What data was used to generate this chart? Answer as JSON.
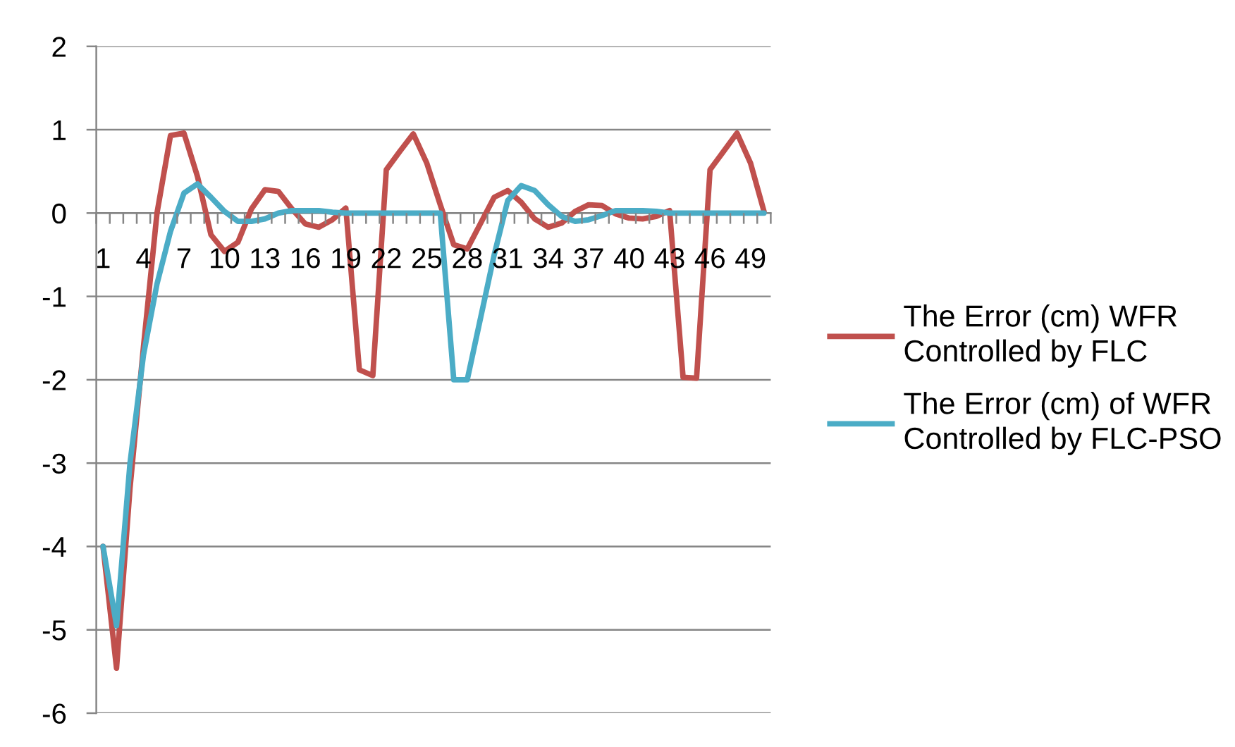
{
  "chart_data": {
    "type": "line",
    "categories": [
      "1",
      null,
      null,
      "4",
      null,
      null,
      "7",
      null,
      null,
      "10",
      null,
      null,
      "13",
      null,
      null,
      "16",
      null,
      null,
      "19",
      null,
      null,
      "22",
      null,
      null,
      "25",
      null,
      null,
      "28",
      null,
      null,
      "31",
      null,
      null,
      "34",
      null,
      null,
      "37",
      null,
      null,
      "40",
      null,
      null,
      "43",
      null,
      null,
      "46",
      null,
      null,
      "49",
      null
    ],
    "series": [
      {
        "name": "The Error (cm) WFR Controlled by FLC",
        "color": "#c0504d",
        "values": [
          -4.0,
          -5.46,
          -3.3,
          -1.6,
          0.0,
          0.93,
          0.96,
          0.44,
          -0.26,
          -0.46,
          -0.35,
          0.05,
          0.28,
          0.26,
          0.05,
          -0.13,
          -0.17,
          -0.08,
          0.06,
          -1.88,
          -1.95,
          0.52,
          0.74,
          0.95,
          0.6,
          0.1,
          -0.38,
          -0.43,
          -0.12,
          0.19,
          0.27,
          0.13,
          -0.07,
          -0.17,
          -0.12,
          0.02,
          0.1,
          0.09,
          -0.01,
          -0.06,
          -0.07,
          -0.04,
          0.03,
          -1.97,
          -1.98,
          0.52,
          0.74,
          0.96,
          0.6,
          0.02
        ]
      },
      {
        "name": "The Error (cm) of WFR Controlled by FLC-PSO",
        "color": "#4bacc6",
        "values": [
          -4.0,
          -4.95,
          -3.0,
          -1.7,
          -0.85,
          -0.22,
          0.24,
          0.35,
          0.19,
          0.02,
          -0.1,
          -0.1,
          -0.07,
          0.0,
          0.03,
          0.03,
          0.03,
          0.01,
          0,
          0,
          0,
          0,
          0,
          0,
          0,
          0,
          -2.0,
          -2.0,
          -1.25,
          -0.5,
          0.15,
          0.33,
          0.27,
          0.1,
          -0.04,
          -0.1,
          -0.08,
          -0.03,
          0.03,
          0.03,
          0.03,
          0.02,
          0,
          0,
          0,
          0,
          0,
          0,
          0,
          0
        ]
      }
    ],
    "ylim": [
      -6,
      2
    ],
    "yticks": [
      -6,
      -5,
      -4,
      -3,
      -2,
      -1,
      0,
      1,
      2
    ],
    "grid": "y",
    "legend": "right"
  }
}
